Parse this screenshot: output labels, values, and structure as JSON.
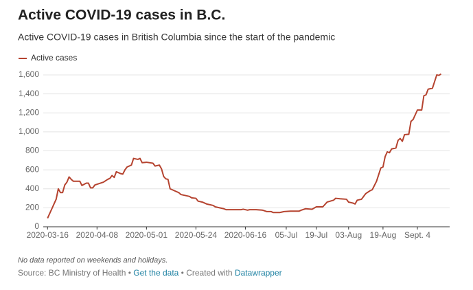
{
  "chart_data": {
    "type": "line",
    "title": "Active COVID-19 cases in B.C.",
    "subtitle": "Active COVID-19 cases in British Columbia since the start of the pandemic",
    "note": "No data reported on weekends and holidays.",
    "footer": {
      "source": "Source: BC Ministry of Health",
      "separator": "•",
      "data_link": "Get the data",
      "credit": "Created with",
      "credit_link": "Datawrapper"
    },
    "x": [
      "2020-03-16",
      "2020-03-18",
      "2020-03-19",
      "2020-03-20",
      "2020-03-21",
      "2020-03-22",
      "2020-03-23",
      "2020-03-24",
      "2020-03-25",
      "2020-03-26",
      "2020-03-27",
      "2020-03-28",
      "2020-03-31",
      "2020-04-01",
      "2020-04-03",
      "2020-04-04",
      "2020-04-05",
      "2020-04-06",
      "2020-04-07",
      "2020-04-11",
      "2020-04-13",
      "2020-04-14",
      "2020-04-15",
      "2020-04-16",
      "2020-04-17",
      "2020-04-19",
      "2020-04-20",
      "2020-04-21",
      "2020-04-22",
      "2020-04-24",
      "2020-04-25",
      "2020-04-27",
      "2020-04-28",
      "2020-04-29",
      "2020-05-01",
      "2020-05-04",
      "2020-05-05",
      "2020-05-07",
      "2020-05-08",
      "2020-05-09",
      "2020-05-10",
      "2020-05-11",
      "2020-05-12",
      "2020-05-14",
      "2020-05-16",
      "2020-05-17",
      "2020-05-21",
      "2020-05-22",
      "2020-05-24",
      "2020-05-25",
      "2020-05-27",
      "2020-05-29",
      "2020-05-31",
      "2020-06-01",
      "2020-06-02",
      "2020-06-04",
      "2020-06-06",
      "2020-06-07",
      "2020-06-10",
      "2020-06-14",
      "2020-06-15",
      "2020-06-17",
      "2020-06-18",
      "2020-06-21",
      "2020-06-24",
      "2020-06-26",
      "2020-06-28",
      "2020-06-29",
      "2020-07-02",
      "2020-07-04",
      "2020-07-07",
      "2020-07-11",
      "2020-07-12",
      "2020-07-14",
      "2020-07-17",
      "2020-07-19",
      "2020-07-21",
      "2020-07-22",
      "2020-07-24",
      "2020-07-27",
      "2020-07-28",
      "2020-07-30",
      "2020-08-02",
      "2020-08-03",
      "2020-08-05",
      "2020-08-06",
      "2020-08-07",
      "2020-08-09",
      "2020-08-11",
      "2020-08-13",
      "2020-08-14",
      "2020-08-16",
      "2020-08-18",
      "2020-08-19",
      "2020-08-20",
      "2020-08-21",
      "2020-08-22",
      "2020-08-23",
      "2020-08-25",
      "2020-08-26",
      "2020-08-27",
      "2020-08-28",
      "2020-08-29",
      "2020-08-31",
      "2020-09-01",
      "2020-09-02",
      "2020-09-04",
      "2020-09-06",
      "2020-09-07",
      "2020-09-08",
      "2020-09-09",
      "2020-09-11",
      "2020-09-13",
      "2020-09-14",
      "2020-09-15"
    ],
    "series": [
      {
        "name": "Active cases",
        "color": "#b5432f",
        "values": [
          90,
          190,
          240,
          290,
          400,
          360,
          360,
          440,
          470,
          525,
          500,
          480,
          480,
          435,
          460,
          460,
          410,
          410,
          440,
          470,
          500,
          510,
          540,
          520,
          580,
          560,
          555,
          600,
          630,
          650,
          720,
          710,
          720,
          675,
          680,
          670,
          640,
          650,
          610,
          530,
          505,
          500,
          400,
          380,
          360,
          340,
          320,
          305,
          300,
          270,
          260,
          240,
          230,
          225,
          210,
          200,
          190,
          180,
          180,
          180,
          185,
          175,
          180,
          180,
          175,
          160,
          160,
          150,
          150,
          160,
          165,
          165,
          175,
          190,
          185,
          210,
          210,
          210,
          260,
          280,
          300,
          295,
          290,
          260,
          250,
          240,
          280,
          290,
          350,
          380,
          390,
          480,
          620,
          630,
          740,
          790,
          780,
          820,
          830,
          910,
          930,
          900,
          970,
          975,
          1110,
          1130,
          1230,
          1230,
          1380,
          1390,
          1450,
          1460,
          1600,
          1595,
          1610
        ]
      }
    ],
    "xlim": [
      "2020-03-14",
      "2020-09-19"
    ],
    "xticks": [
      "2020-03-16",
      "2020-04-08",
      "2020-05-01",
      "2020-05-24",
      "2020-06-16",
      {
        "value": "2020-07-05",
        "label": "05-Jul"
      },
      {
        "value": "2020-07-19",
        "label": "19-Jul"
      },
      {
        "value": "2020-08-03",
        "label": "03-Aug"
      },
      {
        "value": "2020-08-19",
        "label": "19-Aug"
      },
      {
        "value": "2020-09-04",
        "label": "Sept. 4"
      }
    ],
    "ylim": [
      0,
      1600
    ],
    "yticks": [
      0,
      200,
      400,
      600,
      800,
      {
        "value": 1000,
        "label": "1,000"
      },
      {
        "value": 1200,
        "label": "1,200"
      },
      {
        "value": 1400,
        "label": "1,400"
      },
      {
        "value": 1600,
        "label": "1,600"
      }
    ],
    "grid": true
  }
}
